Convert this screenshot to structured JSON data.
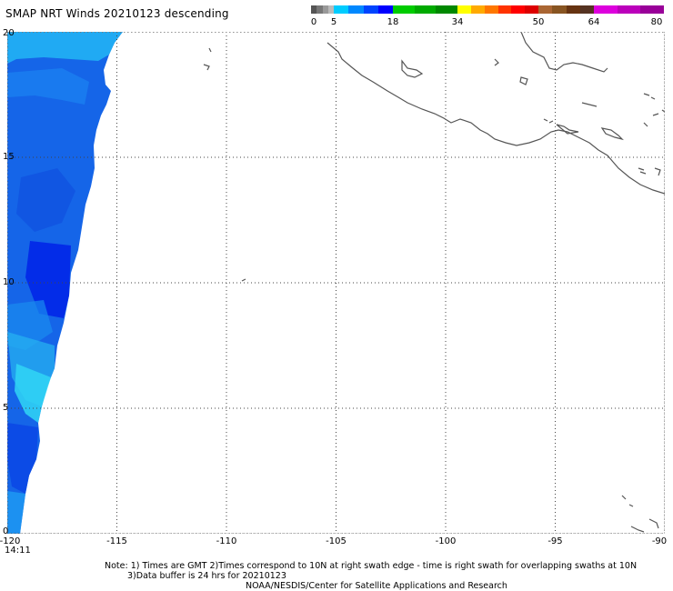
{
  "title": "SMAP NRT Winds  20210123 descending",
  "colorbar": {
    "segments": [
      {
        "from": 0,
        "to": 5,
        "colors": [
          "#555555",
          "#777777",
          "#999999",
          "#bbbbbb"
        ]
      },
      {
        "from": 5,
        "to": 18,
        "colors": [
          "#00ccff",
          "#0088ff",
          "#0044ff",
          "#0000ff"
        ]
      },
      {
        "from": 18,
        "to": 34,
        "colors": [
          "#00cc00",
          "#00aa00",
          "#008800"
        ]
      },
      {
        "from": 34,
        "to": 50,
        "colors": [
          "#ffff00",
          "#ffaa00",
          "#ff7700",
          "#ff3300",
          "#ff0000",
          "#dd0000"
        ]
      },
      {
        "from": 50,
        "to": 64,
        "colors": [
          "#aa6633",
          "#885522",
          "#663311",
          "#553322"
        ]
      },
      {
        "from": 64,
        "to": 80,
        "colors": [
          "#dd00dd",
          "#bb00bb",
          "#990099"
        ]
      }
    ],
    "tick_labels": [
      "0",
      "5",
      "18",
      "34",
      "50",
      "64",
      "80"
    ]
  },
  "map": {
    "lon_range": [
      -120,
      -90
    ],
    "lat_range": [
      0,
      20
    ],
    "lon_ticks": [
      "-120",
      "-115",
      "-110",
      "-105",
      "-100",
      "-95",
      "-90"
    ],
    "lat_ticks": [
      "20",
      "15",
      "10",
      "5",
      "0"
    ],
    "grid": true,
    "swath_color_dark": "#0000ee",
    "swath_color_light": "#00ddff",
    "coast_color": "#555555"
  },
  "time_label": "14:11",
  "notes": {
    "line1": "Note: 1) Times are GMT 2)Times correspond to 10N at right swath edge - time is right swath for overlapping swaths at 10N",
    "line2": "3)Data buffer is 24 hrs for 20210123",
    "line3": "NOAA/NESDIS/Center for Satellite Applications and Research"
  }
}
